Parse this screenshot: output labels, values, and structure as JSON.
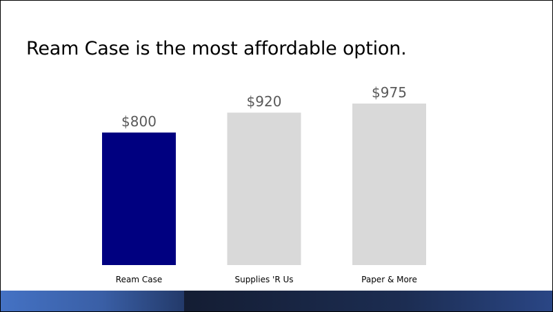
{
  "slide": {
    "title": "Ream Case is the most affordable option.",
    "colors": {
      "highlight_bar": "#000080",
      "other_bars": "#d9d9d9",
      "value_label": "#595959",
      "footer_left": "#4472c4",
      "footer_right": "#1c2d52"
    }
  },
  "chart_data": {
    "type": "bar",
    "categories": [
      "Ream Case",
      "Supplies 'R Us",
      "Paper & More"
    ],
    "values": [
      800,
      920,
      975
    ],
    "value_labels": [
      "$800",
      "$920",
      "$975"
    ],
    "highlight_index": 0,
    "title": "",
    "xlabel": "",
    "ylabel": "",
    "ylim": [
      0,
      1000
    ],
    "grid": false,
    "legend": "none"
  }
}
